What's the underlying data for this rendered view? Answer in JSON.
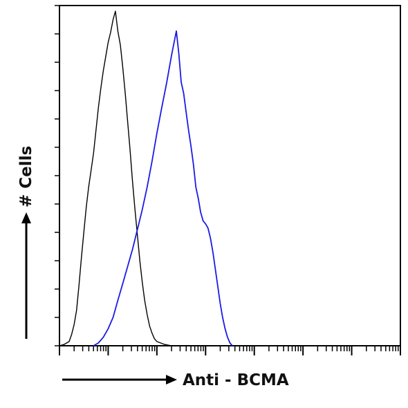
{
  "chart_data": {
    "type": "line",
    "title": "",
    "xlabel": "Anti - BCMA",
    "ylabel": "# Cells",
    "x_scale": "log",
    "xlim": [
      1,
      10000000
    ],
    "ylim": [
      0,
      240
    ],
    "grid": false,
    "legend": "none",
    "series": [
      {
        "color": "#000000",
        "points": [
          [
            1.0,
            0
          ],
          [
            1.26,
            1
          ],
          [
            1.58,
            3
          ],
          [
            1.78,
            8
          ],
          [
            2.0,
            15
          ],
          [
            2.24,
            25
          ],
          [
            2.51,
            42
          ],
          [
            2.82,
            62
          ],
          [
            3.16,
            80
          ],
          [
            3.55,
            98
          ],
          [
            3.98,
            112
          ],
          [
            4.47,
            124
          ],
          [
            5.01,
            136
          ],
          [
            5.62,
            152
          ],
          [
            6.31,
            168
          ],
          [
            7.08,
            182
          ],
          [
            7.94,
            194
          ],
          [
            8.91,
            204
          ],
          [
            10.0,
            214
          ],
          [
            11.2,
            221
          ],
          [
            12.6,
            230
          ],
          [
            14.1,
            236
          ],
          [
            15.8,
            222
          ],
          [
            17.8,
            212
          ],
          [
            20.0,
            196
          ],
          [
            22.4,
            178
          ],
          [
            25.1,
            158
          ],
          [
            28.2,
            138
          ],
          [
            31.6,
            116
          ],
          [
            35.5,
            96
          ],
          [
            39.8,
            78
          ],
          [
            44.7,
            60
          ],
          [
            50.1,
            45
          ],
          [
            56.2,
            32
          ],
          [
            63.1,
            22
          ],
          [
            70.8,
            14
          ],
          [
            79.4,
            9
          ],
          [
            89.1,
            5
          ],
          [
            100,
            3
          ],
          [
            141,
            1
          ],
          [
            200,
            0
          ]
        ]
      },
      {
        "color": "#1a1ae6",
        "points": [
          [
            5.0,
            0
          ],
          [
            6.31,
            2
          ],
          [
            7.94,
            6
          ],
          [
            10.0,
            12
          ],
          [
            12.6,
            20
          ],
          [
            15.8,
            32
          ],
          [
            20.0,
            44
          ],
          [
            25.1,
            56
          ],
          [
            31.6,
            68
          ],
          [
            39.8,
            82
          ],
          [
            50.1,
            96
          ],
          [
            63.1,
            112
          ],
          [
            79.4,
            130
          ],
          [
            100,
            150
          ],
          [
            126,
            168
          ],
          [
            158,
            185
          ],
          [
            200,
            205
          ],
          [
            251,
            222
          ],
          [
            282,
            206
          ],
          [
            316,
            186
          ],
          [
            355,
            178
          ],
          [
            398,
            165
          ],
          [
            447,
            152
          ],
          [
            501,
            141
          ],
          [
            562,
            128
          ],
          [
            631,
            112
          ],
          [
            708,
            104
          ],
          [
            794,
            94
          ],
          [
            891,
            88
          ],
          [
            1000,
            86
          ],
          [
            1122,
            83
          ],
          [
            1259,
            76
          ],
          [
            1413,
            66
          ],
          [
            1585,
            54
          ],
          [
            1778,
            42
          ],
          [
            1995,
            30
          ],
          [
            2239,
            20
          ],
          [
            2512,
            12
          ],
          [
            2818,
            6
          ],
          [
            3162,
            2
          ],
          [
            3548,
            0
          ]
        ]
      }
    ]
  }
}
